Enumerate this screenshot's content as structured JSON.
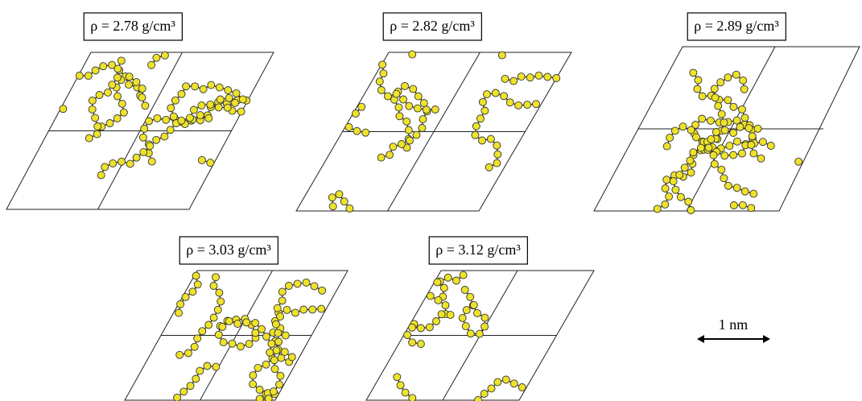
{
  "panels": [
    {
      "label": "ρ = 2.78 g/cm³"
    },
    {
      "label": "ρ = 2.82 g/cm³"
    },
    {
      "label": "ρ = 2.89 g/cm³"
    },
    {
      "label": "ρ = 3.03 g/cm³"
    },
    {
      "label": "ρ = 3.12 g/cm³"
    }
  ],
  "scale_bar": {
    "label": "1 nm"
  }
}
